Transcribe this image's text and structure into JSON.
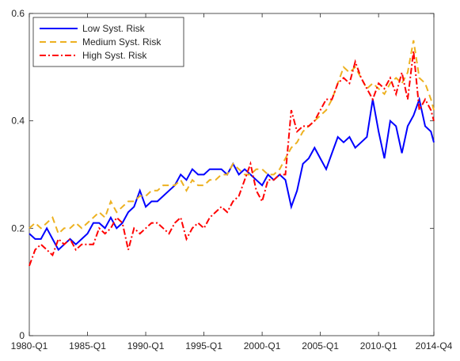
{
  "chart_data": {
    "type": "line",
    "x": [
      1980,
      1980.5,
      1981,
      1981.5,
      1982,
      1982.5,
      1983,
      1983.5,
      1984,
      1984.5,
      1985,
      1985.5,
      1986,
      1986.5,
      1987,
      1987.5,
      1988,
      1988.5,
      1989,
      1989.5,
      1990,
      1990.5,
      1991,
      1991.5,
      1992,
      1992.5,
      1993,
      1993.5,
      1994,
      1994.5,
      1995,
      1995.5,
      1996,
      1996.5,
      1997,
      1997.5,
      1998,
      1998.5,
      1999,
      1999.5,
      2000,
      2000.5,
      2001,
      2001.5,
      2002,
      2002.5,
      2003,
      2003.5,
      2004,
      2004.5,
      2005,
      2005.5,
      2006,
      2006.5,
      2007,
      2007.5,
      2008,
      2008.5,
      2009,
      2009.5,
      2010,
      2010.5,
      2011,
      2011.5,
      2012,
      2012.5,
      2013,
      2013.5,
      2014,
      2014.5,
      2014.75
    ],
    "series": [
      {
        "name": "Low Syst. Risk",
        "color": "#0000ff",
        "dash": "solid",
        "values": [
          0.19,
          0.18,
          0.18,
          0.2,
          0.18,
          0.16,
          0.17,
          0.18,
          0.17,
          0.18,
          0.19,
          0.21,
          0.21,
          0.2,
          0.22,
          0.2,
          0.21,
          0.23,
          0.24,
          0.27,
          0.24,
          0.25,
          0.25,
          0.26,
          0.27,
          0.28,
          0.3,
          0.29,
          0.31,
          0.3,
          0.3,
          0.31,
          0.31,
          0.31,
          0.3,
          0.32,
          0.3,
          0.31,
          0.3,
          0.29,
          0.28,
          0.3,
          0.29,
          0.3,
          0.29,
          0.24,
          0.27,
          0.32,
          0.33,
          0.35,
          0.33,
          0.31,
          0.34,
          0.37,
          0.36,
          0.37,
          0.35,
          0.36,
          0.37,
          0.44,
          0.38,
          0.33,
          0.4,
          0.39,
          0.34,
          0.39,
          0.41,
          0.44,
          0.39,
          0.38,
          0.36
        ]
      },
      {
        "name": "Medium Syst. Risk",
        "color": "#edb120",
        "dash": "dashed",
        "values": [
          0.2,
          0.21,
          0.2,
          0.21,
          0.22,
          0.19,
          0.2,
          0.2,
          0.21,
          0.2,
          0.21,
          0.22,
          0.23,
          0.22,
          0.25,
          0.23,
          0.24,
          0.25,
          0.25,
          0.26,
          0.26,
          0.27,
          0.27,
          0.28,
          0.28,
          0.28,
          0.29,
          0.27,
          0.29,
          0.28,
          0.28,
          0.29,
          0.29,
          0.3,
          0.3,
          0.32,
          0.31,
          0.3,
          0.3,
          0.31,
          0.31,
          0.3,
          0.3,
          0.31,
          0.33,
          0.35,
          0.36,
          0.38,
          0.39,
          0.4,
          0.41,
          0.42,
          0.44,
          0.47,
          0.5,
          0.49,
          0.5,
          0.48,
          0.46,
          0.47,
          0.46,
          0.45,
          0.47,
          0.48,
          0.47,
          0.49,
          0.55,
          0.48,
          0.47,
          0.44,
          0.42
        ]
      },
      {
        "name": "High Syst. Risk",
        "color": "#ff0000",
        "dash": "dashdot",
        "values": [
          0.13,
          0.16,
          0.17,
          0.16,
          0.15,
          0.18,
          0.17,
          0.18,
          0.16,
          0.17,
          0.17,
          0.17,
          0.2,
          0.19,
          0.2,
          0.22,
          0.21,
          0.16,
          0.2,
          0.19,
          0.2,
          0.21,
          0.21,
          0.2,
          0.19,
          0.21,
          0.22,
          0.18,
          0.2,
          0.21,
          0.2,
          0.22,
          0.23,
          0.24,
          0.23,
          0.25,
          0.26,
          0.29,
          0.32,
          0.27,
          0.25,
          0.29,
          0.29,
          0.3,
          0.3,
          0.42,
          0.38,
          0.39,
          0.39,
          0.4,
          0.42,
          0.44,
          0.44,
          0.47,
          0.48,
          0.47,
          0.51,
          0.48,
          0.46,
          0.44,
          0.47,
          0.46,
          0.48,
          0.45,
          0.49,
          0.44,
          0.53,
          0.42,
          0.44,
          0.42,
          0.4
        ]
      }
    ],
    "xlim": [
      1980,
      2014.75
    ],
    "xticks": [
      {
        "value": 1980,
        "label": "1980-Q1"
      },
      {
        "value": 1985,
        "label": "1985-Q1"
      },
      {
        "value": 1990,
        "label": "1990-Q1"
      },
      {
        "value": 1995,
        "label": "1995-Q1"
      },
      {
        "value": 2000,
        "label": "2000-Q1"
      },
      {
        "value": 2005,
        "label": "2005-Q1"
      },
      {
        "value": 2010,
        "label": "2010-Q1"
      },
      {
        "value": 2014.75,
        "label": "2014-Q4"
      }
    ],
    "ylim": [
      0,
      0.6
    ],
    "yticks": [
      0,
      0.2,
      0.4,
      0.6
    ],
    "grid": false,
    "legend": "top-left"
  }
}
